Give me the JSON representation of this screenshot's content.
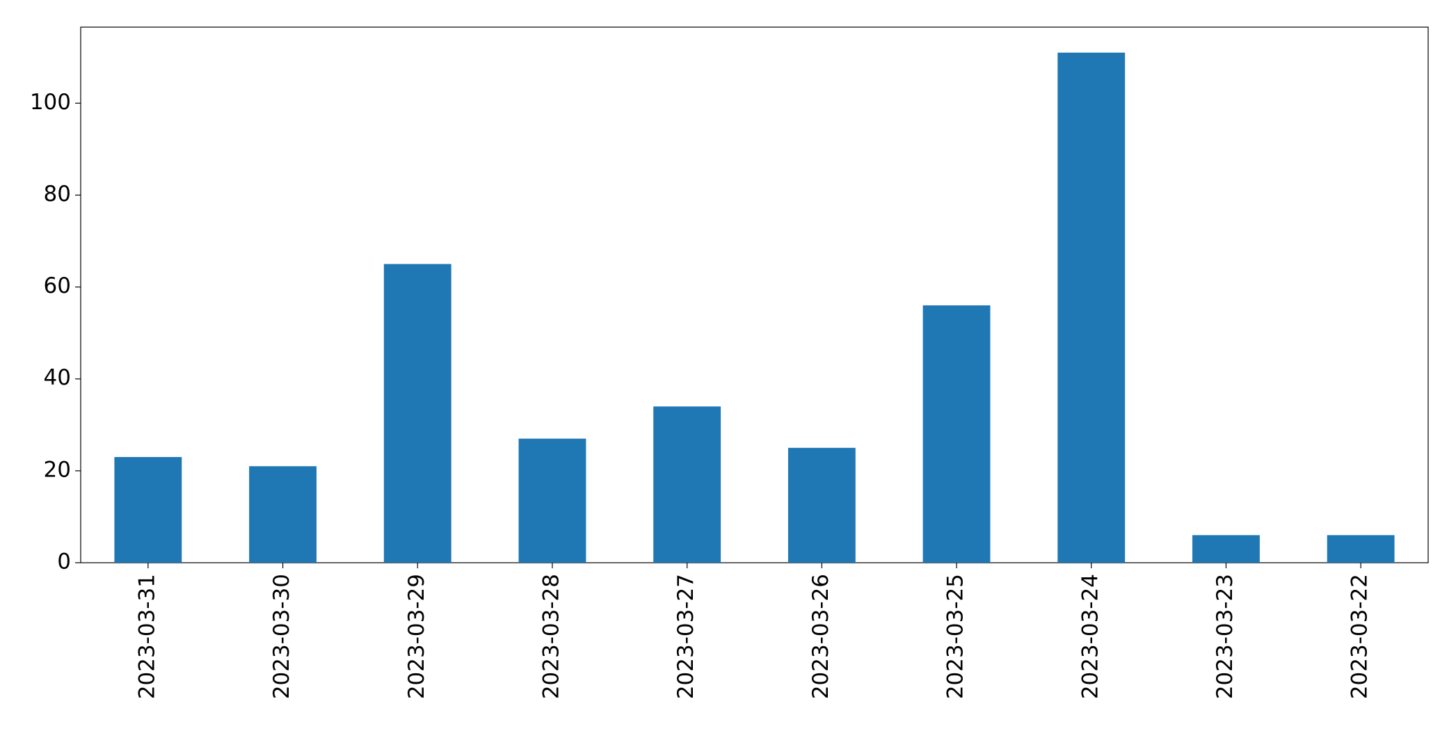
{
  "chart_data": {
    "type": "bar",
    "categories": [
      "2023-03-31",
      "2023-03-30",
      "2023-03-29",
      "2023-03-28",
      "2023-03-27",
      "2023-03-26",
      "2023-03-25",
      "2023-03-24",
      "2023-03-23",
      "2023-03-22"
    ],
    "values": [
      23,
      21,
      65,
      27,
      34,
      25,
      56,
      111,
      6,
      6
    ],
    "color": "#1f77b4",
    "ylim": [
      0,
      116.55
    ],
    "yticks": [
      0,
      20,
      40,
      60,
      80,
      100
    ],
    "grid": false
  }
}
